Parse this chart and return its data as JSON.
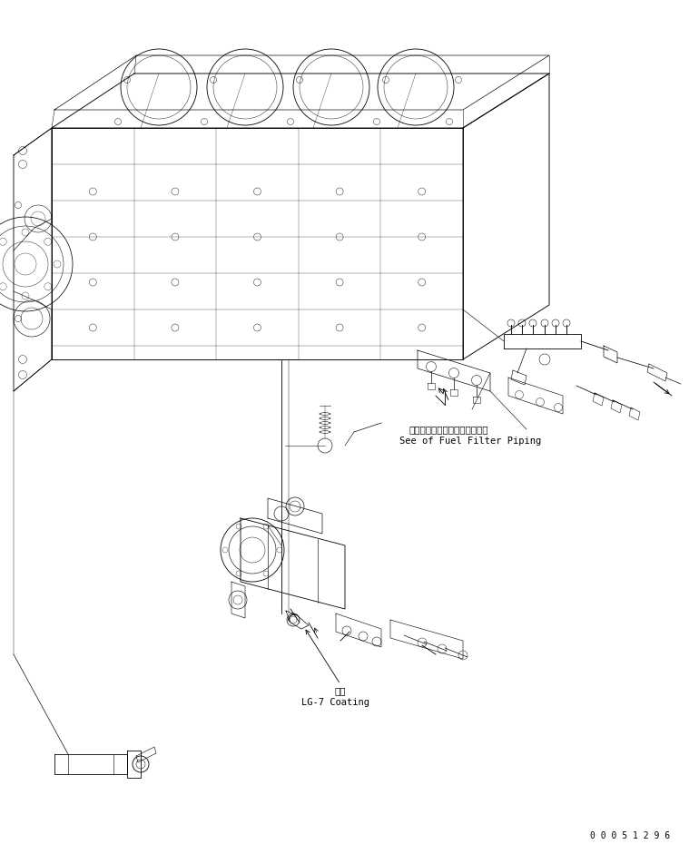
{
  "bg_color": "#ffffff",
  "lc": "#000000",
  "fig_width": 7.59,
  "fig_height": 9.41,
  "dpi": 100,
  "ann_jp1": "フェルフィルタバイピング参照",
  "ann_en1": "See of Fuel Filter Piping",
  "ann_jp2": "塗布",
  "ann_en2": "LG-7 Coating",
  "partnum": "0 0 0 5 1 2 9 6",
  "fs": 7.0,
  "fs_part": 7.0
}
